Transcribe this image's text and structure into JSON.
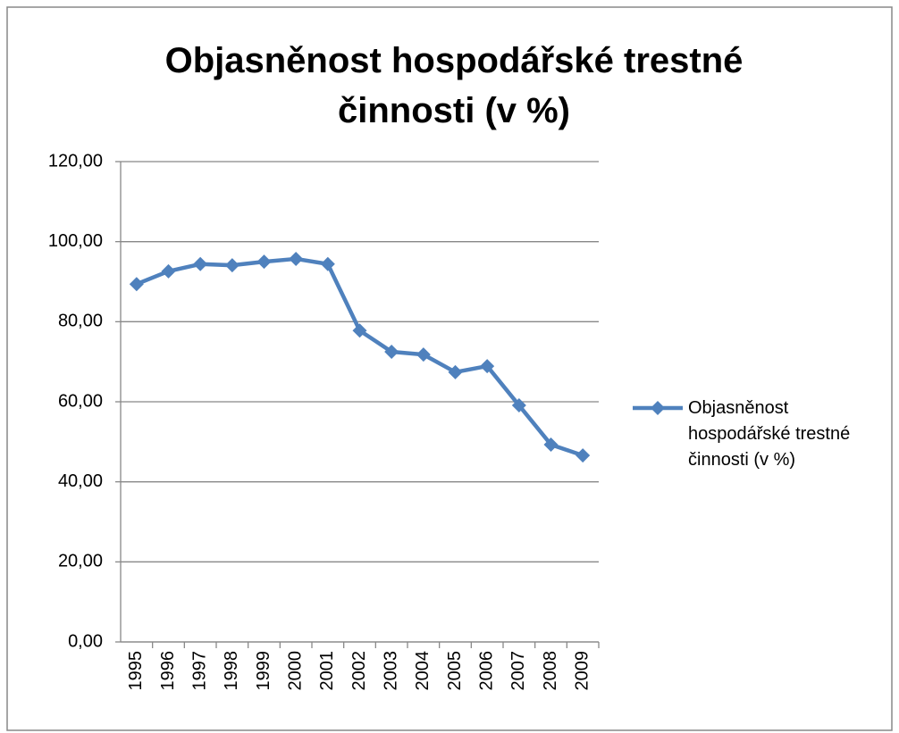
{
  "chart_data": {
    "type": "line",
    "title": "Objasněnost hospodářské trestné činnosti (v %)",
    "categories": [
      "1995",
      "1996",
      "1997",
      "1998",
      "1999",
      "2000",
      "2001",
      "2002",
      "2003",
      "2004",
      "2005",
      "2006",
      "2007",
      "2008",
      "2009"
    ],
    "series": [
      {
        "name": "Objasněnost hospodářské trestné činnosti (v %)",
        "color": "#4f81bd",
        "values": [
          89.4,
          92.6,
          94.4,
          94.1,
          95.0,
          95.7,
          94.4,
          77.8,
          72.5,
          71.8,
          67.4,
          68.9,
          59.1,
          49.3,
          46.6
        ]
      }
    ],
    "ylim": [
      0,
      120
    ],
    "yticks": [
      {
        "value": 0,
        "label": "0,00"
      },
      {
        "value": 20,
        "label": "20,00"
      },
      {
        "value": 40,
        "label": "40,00"
      },
      {
        "value": 60,
        "label": "60,00"
      },
      {
        "value": 80,
        "label": "80,00"
      },
      {
        "value": 100,
        "label": "100,00"
      },
      {
        "value": 120,
        "label": "120,00"
      }
    ],
    "grid": true,
    "legend": "right"
  }
}
